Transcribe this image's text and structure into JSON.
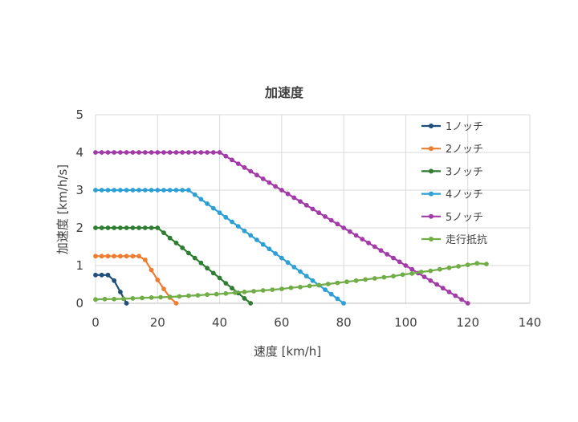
{
  "chart_data": {
    "type": "line",
    "title": "加速度",
    "xlabel": "速度 [km/h]",
    "ylabel": "加速度 [km/h/s]",
    "xlim": [
      0,
      140
    ],
    "ylim": [
      0,
      5
    ],
    "xticks": [
      "0",
      "20",
      "40",
      "60",
      "80",
      "100",
      "120",
      "140"
    ],
    "yticks": [
      "0",
      "1",
      "2",
      "3",
      "4",
      "5"
    ],
    "grid": true,
    "legend": "top-right",
    "series": [
      {
        "name": "1ノッチ",
        "color": "#1F4E79",
        "x": [
          0,
          2,
          4,
          6,
          8,
          10
        ],
        "y": [
          0.75,
          0.75,
          0.75,
          0.6,
          0.3,
          0
        ]
      },
      {
        "name": "2ノッチ",
        "color": "#ED7D31",
        "x": [
          0,
          2,
          4,
          6,
          8,
          10,
          12,
          14,
          16,
          18,
          20,
          22,
          24,
          26
        ],
        "y": [
          1.25,
          1.25,
          1.25,
          1.25,
          1.25,
          1.25,
          1.25,
          1.25,
          1.15,
          0.88,
          0.62,
          0.38,
          0.15,
          0
        ]
      },
      {
        "name": "3ノッチ",
        "color": "#2E7D32",
        "x": [
          0,
          2,
          4,
          6,
          8,
          10,
          12,
          14,
          16,
          18,
          20,
          22,
          24,
          26,
          28,
          30,
          32,
          34,
          36,
          38,
          40,
          42,
          44,
          46,
          48,
          50
        ],
        "y": [
          2,
          2,
          2,
          2,
          2,
          2,
          2,
          2,
          2,
          2,
          2,
          1.87,
          1.73,
          1.6,
          1.47,
          1.33,
          1.2,
          1.07,
          0.93,
          0.8,
          0.67,
          0.53,
          0.4,
          0.27,
          0.13,
          0
        ]
      },
      {
        "name": "4ノッチ",
        "color": "#2E9FD4",
        "x": [
          0,
          2,
          4,
          6,
          8,
          10,
          12,
          14,
          16,
          18,
          20,
          22,
          24,
          26,
          28,
          30,
          32,
          34,
          36,
          38,
          40,
          42,
          44,
          46,
          48,
          50,
          52,
          54,
          56,
          58,
          60,
          62,
          64,
          66,
          68,
          70,
          72,
          74,
          76,
          78,
          80
        ],
        "y": [
          3,
          3,
          3,
          3,
          3,
          3,
          3,
          3,
          3,
          3,
          3,
          3,
          3,
          3,
          3,
          3,
          2.88,
          2.76,
          2.64,
          2.52,
          2.4,
          2.28,
          2.16,
          2.04,
          1.92,
          1.8,
          1.68,
          1.56,
          1.44,
          1.32,
          1.2,
          1.08,
          0.96,
          0.84,
          0.72,
          0.6,
          0.48,
          0.36,
          0.24,
          0.12,
          0
        ]
      },
      {
        "name": "5ノッチ",
        "color": "#A23BA8",
        "x": [
          0,
          2,
          4,
          6,
          8,
          10,
          12,
          14,
          16,
          18,
          20,
          22,
          24,
          26,
          28,
          30,
          32,
          34,
          36,
          38,
          40,
          42,
          44,
          46,
          48,
          50,
          52,
          54,
          56,
          58,
          60,
          62,
          64,
          66,
          68,
          70,
          72,
          74,
          76,
          78,
          80,
          82,
          84,
          86,
          88,
          90,
          92,
          94,
          96,
          98,
          100,
          102,
          104,
          106,
          108,
          110,
          112,
          114,
          116,
          118,
          120
        ],
        "y": [
          4,
          4,
          4,
          4,
          4,
          4,
          4,
          4,
          4,
          4,
          4,
          4,
          4,
          4,
          4,
          4,
          4,
          4,
          4,
          4,
          4,
          3.9,
          3.8,
          3.7,
          3.6,
          3.5,
          3.4,
          3.3,
          3.2,
          3.1,
          3.0,
          2.9,
          2.8,
          2.7,
          2.6,
          2.5,
          2.4,
          2.3,
          2.2,
          2.1,
          2.0,
          1.9,
          1.8,
          1.7,
          1.6,
          1.5,
          1.4,
          1.3,
          1.2,
          1.1,
          1.0,
          0.9,
          0.8,
          0.7,
          0.6,
          0.5,
          0.4,
          0.3,
          0.2,
          0.1,
          0
        ]
      },
      {
        "name": "走行抵抗",
        "color": "#70AD47",
        "x": [
          0,
          3,
          6,
          9,
          12,
          15,
          18,
          21,
          24,
          27,
          30,
          33,
          36,
          39,
          42,
          45,
          48,
          51,
          54,
          57,
          60,
          63,
          66,
          69,
          72,
          75,
          78,
          81,
          84,
          87,
          90,
          93,
          96,
          99,
          102,
          105,
          108,
          111,
          114,
          117,
          120,
          123,
          126
        ],
        "y": [
          0.1,
          0.11,
          0.11,
          0.12,
          0.13,
          0.14,
          0.15,
          0.16,
          0.17,
          0.18,
          0.2,
          0.21,
          0.23,
          0.24,
          0.26,
          0.28,
          0.3,
          0.32,
          0.34,
          0.36,
          0.38,
          0.41,
          0.43,
          0.46,
          0.48,
          0.51,
          0.54,
          0.57,
          0.6,
          0.63,
          0.66,
          0.69,
          0.72,
          0.76,
          0.79,
          0.83,
          0.86,
          0.9,
          0.94,
          0.98,
          1.02,
          1.06,
          1.04
        ]
      }
    ]
  }
}
